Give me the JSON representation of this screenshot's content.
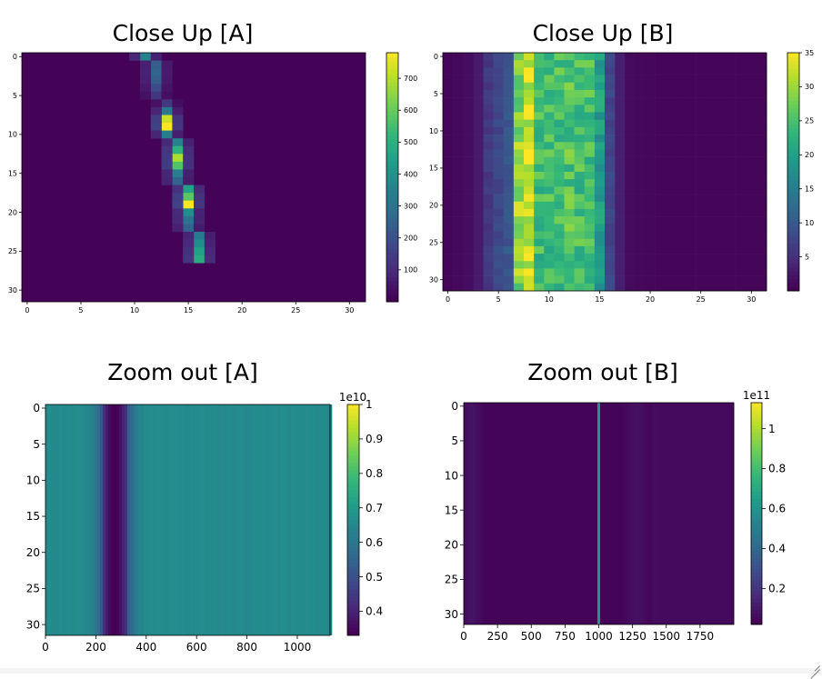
{
  "chart_data": [
    {
      "type": "heatmap",
      "title": "Close Up [A]",
      "x_ticks": [
        0,
        5,
        10,
        15,
        20,
        25,
        30
      ],
      "y_ticks": [
        0,
        5,
        10,
        15,
        20,
        25,
        30
      ],
      "xlim": [
        -0.5,
        31.5
      ],
      "ylim": [
        31.5,
        -0.5
      ],
      "colorbar": {
        "min": 0,
        "max": 780,
        "ticks": [
          100,
          200,
          300,
          400,
          500,
          600,
          700
        ]
      },
      "ridge": [
        [
          0,
          11,
          350,
          0.25
        ],
        [
          1,
          12,
          230,
          0.3
        ],
        [
          2,
          12,
          250,
          0.3
        ],
        [
          3,
          12,
          230,
          0.3
        ],
        [
          4,
          12,
          180,
          0.3
        ],
        [
          5,
          12,
          120,
          0.3
        ],
        [
          6,
          13,
          130,
          0.3
        ],
        [
          7,
          13,
          320,
          0.25
        ],
        [
          8,
          13,
          720,
          0.2
        ],
        [
          9,
          13,
          780,
          0.2
        ],
        [
          10,
          13,
          330,
          0.25
        ],
        [
          11,
          14,
          350,
          0.25
        ],
        [
          12,
          14,
          500,
          0.25
        ],
        [
          13,
          14,
          680,
          0.2
        ],
        [
          14,
          14,
          560,
          0.25
        ],
        [
          15,
          14,
          330,
          0.25
        ],
        [
          16,
          14,
          250,
          0.3
        ],
        [
          17,
          15,
          450,
          0.25
        ],
        [
          18,
          15,
          580,
          0.25
        ],
        [
          19,
          15,
          780,
          0.2
        ],
        [
          20,
          15,
          380,
          0.25
        ],
        [
          21,
          15,
          300,
          0.3
        ],
        [
          22,
          15,
          240,
          0.3
        ],
        [
          23,
          16,
          320,
          0.25
        ],
        [
          24,
          16,
          380,
          0.25
        ],
        [
          25,
          16,
          450,
          0.25
        ],
        [
          26,
          16,
          480,
          0.25
        ]
      ]
    },
    {
      "type": "heatmap",
      "title": "Close Up [B]",
      "x_ticks": [
        0,
        5,
        10,
        15,
        20,
        25,
        30
      ],
      "y_ticks": [
        0,
        5,
        10,
        15,
        20,
        25,
        30
      ],
      "xlim": [
        -0.5,
        31.5
      ],
      "ylim": [
        31.5,
        -0.5
      ],
      "colorbar": {
        "min": 0,
        "max": 35,
        "ticks": [
          5,
          10,
          15,
          20,
          25,
          30,
          35
        ]
      },
      "column_profile": [
        0.5,
        0.8,
        1.2,
        2.5,
        6,
        8,
        10,
        30,
        34,
        25,
        25,
        25,
        26,
        25,
        25,
        20,
        8,
        3,
        1,
        0.7,
        0.6,
        0.5,
        0.5,
        0.5,
        0.5,
        0.5,
        0.5,
        0.5,
        0.5,
        0.5,
        0.5,
        0.5
      ]
    },
    {
      "type": "heatmap",
      "title": "Zoom out [A]",
      "x_ticks": [
        0,
        200,
        400,
        600,
        800,
        1000
      ],
      "y_ticks": [
        0,
        5,
        10,
        15,
        20,
        25,
        30
      ],
      "xlim": [
        0,
        1130
      ],
      "ylim": [
        31.5,
        -0.5
      ],
      "colorbar": {
        "min": 0.33,
        "max": 1.0,
        "ticks": [
          0.4,
          0.5,
          0.6,
          0.7,
          0.8,
          0.9,
          1.0
        ],
        "offset_label": "1e10"
      },
      "profile": {
        "base": 0.65,
        "trough_center": 275,
        "trough_sigma": 40,
        "trough_min": 0.33
      }
    },
    {
      "type": "heatmap",
      "title": "Zoom out [B]",
      "x_ticks": [
        0,
        250,
        500,
        750,
        1000,
        1250,
        1500,
        1750
      ],
      "y_ticks": [
        0,
        5,
        10,
        15,
        20,
        25,
        30
      ],
      "xlim": [
        0,
        2000
      ],
      "ylim": [
        31.5,
        -0.5
      ],
      "colorbar": {
        "min": 0.02,
        "max": 1.13,
        "ticks": [
          0.2,
          0.4,
          0.6,
          0.8,
          1.0
        ],
        "offset_label": "1e11"
      },
      "profile": {
        "base": 0.03,
        "spike_x": 1000,
        "spike_value": 0.6
      }
    }
  ],
  "colors": {
    "viridis": [
      "#440154",
      "#482878",
      "#3e4989",
      "#31688e",
      "#26828e",
      "#1f9e89",
      "#35b779",
      "#6ece58",
      "#b5de2b",
      "#fde725"
    ]
  }
}
